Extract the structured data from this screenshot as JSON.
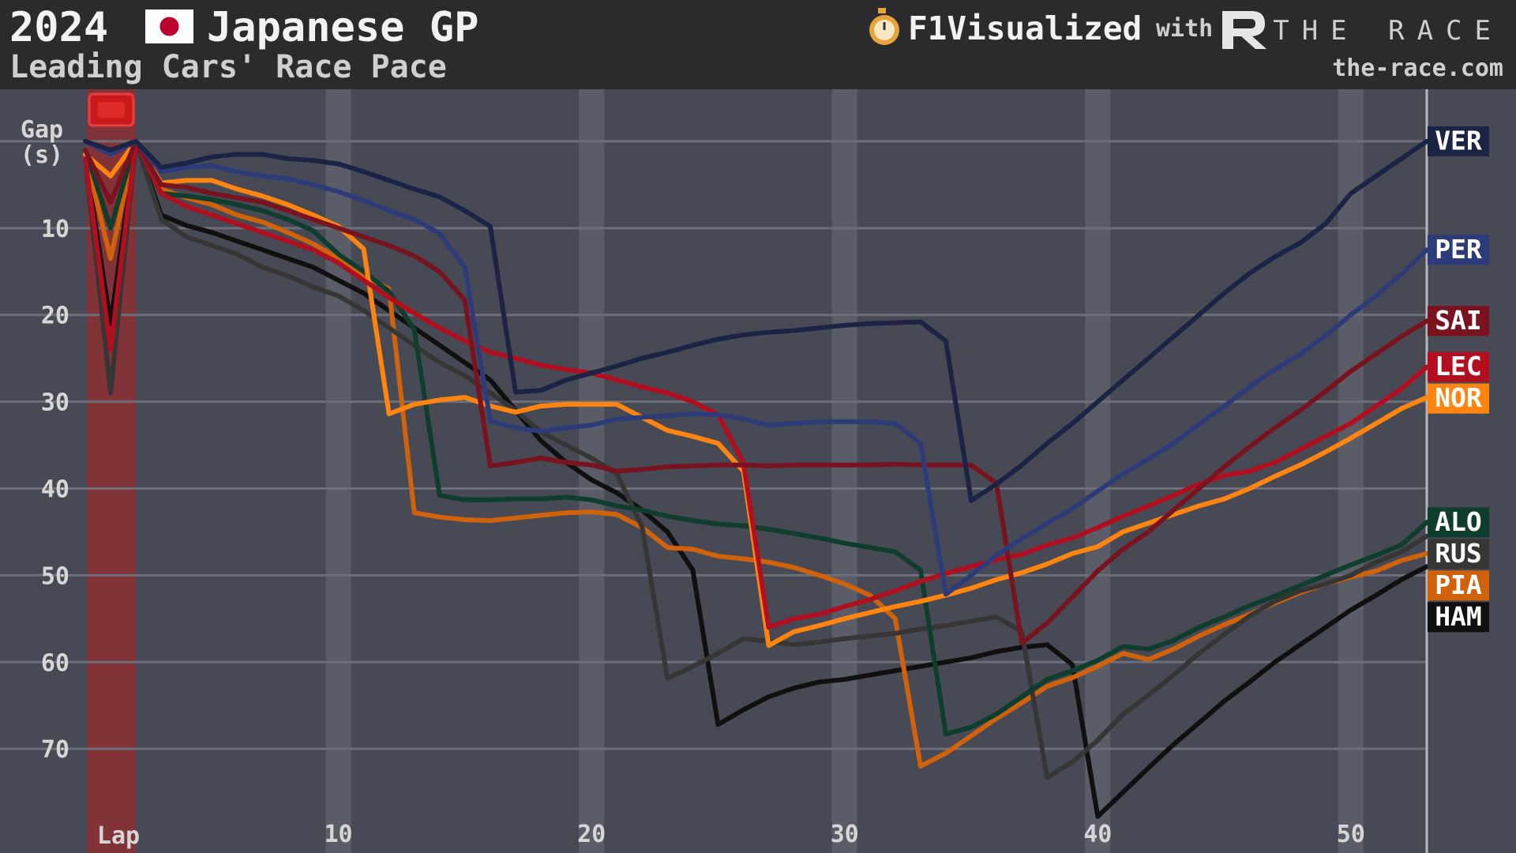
{
  "chart_data": {
    "type": "line",
    "season": "2024",
    "title": "Japanese GP",
    "subtitle": "Leading Cars' Race Pace",
    "x_label": "Lap",
    "xlim": [
      0,
      53
    ],
    "xticks": [
      10,
      20,
      30,
      40,
      50
    ],
    "ylim": [
      82,
      -6
    ],
    "yticks": [
      {
        "value": 0,
        "label": "Gap (s)"
      },
      10,
      20,
      30,
      40,
      50,
      60,
      70
    ],
    "grid": true,
    "x": [
      0,
      1,
      2,
      3,
      4,
      5,
      6,
      7,
      8,
      9,
      10,
      11,
      12,
      13,
      14,
      15,
      16,
      17,
      18,
      19,
      20,
      21,
      22,
      23,
      24,
      25,
      26,
      27,
      28,
      29,
      30,
      31,
      32,
      33,
      34,
      35,
      36,
      37,
      38,
      39,
      40,
      41,
      42,
      43,
      44,
      45,
      46,
      47,
      48,
      49,
      50,
      51,
      52,
      53
    ],
    "series": [
      {
        "name": "VER",
        "color": "#1c2445",
        "values": [
          0,
          1,
          0,
          3,
          2.5,
          1.8,
          1.5,
          1.5,
          2,
          2.2,
          2.6,
          3.5,
          4.5,
          5.5,
          6.4,
          8,
          9.8,
          28.9,
          28.7,
          27.5,
          26.7,
          25.9,
          25,
          24.3,
          23.5,
          22.8,
          22.3,
          22,
          21.8,
          21.5,
          21.2,
          21,
          20.9,
          20.8,
          23,
          41.4,
          39.5,
          37.3,
          34.8,
          32.5,
          30,
          27.5,
          25,
          22.5,
          20,
          17.5,
          15.2,
          13.3,
          11.7,
          9.5,
          6,
          4,
          2,
          0
        ]
      },
      {
        "name": "PER",
        "color": "#2d3c78",
        "values": [
          0,
          1.5,
          0,
          3.5,
          3,
          2.8,
          3.5,
          4,
          4.3,
          5,
          5.8,
          6.8,
          8,
          9,
          10.6,
          14.5,
          32.2,
          33,
          33.4,
          33,
          32.7,
          32,
          31.8,
          31.6,
          31.4,
          31.5,
          32,
          32.7,
          32.5,
          32.3,
          32.3,
          32.3,
          32.5,
          34.8,
          52.2,
          50,
          47.7,
          45.8,
          44,
          42.3,
          40.3,
          38.3,
          36.6,
          34.8,
          32.6,
          30.5,
          28.3,
          26.3,
          24.5,
          22.4,
          20,
          17.8,
          15.3,
          12.5
        ]
      },
      {
        "name": "SAI",
        "color": "#7a1320",
        "values": [
          1,
          7,
          0,
          5,
          5.3,
          6,
          6.5,
          7,
          8,
          9,
          10,
          11,
          12,
          13.2,
          15,
          18.3,
          37.4,
          37,
          36.5,
          37,
          37.3,
          38,
          37.8,
          37.5,
          37.4,
          37.3,
          37.3,
          37.4,
          37.3,
          37.3,
          37.3,
          37.3,
          37.2,
          37.3,
          37.3,
          37.3,
          39.4,
          57.8,
          55.5,
          52.5,
          49.5,
          47,
          45,
          42.5,
          40,
          37.5,
          35.2,
          33,
          31,
          28.8,
          26.5,
          24.5,
          22.5,
          20.7
        ]
      },
      {
        "name": "LEC",
        "color": "#b10f1f",
        "values": [
          2,
          24,
          0,
          6,
          7.5,
          8.5,
          9.5,
          10.5,
          11.5,
          12.5,
          14,
          16,
          18,
          19.8,
          21.5,
          23,
          24.3,
          25,
          25.8,
          26.3,
          26.7,
          27.5,
          28.3,
          29,
          30,
          31.5,
          37,
          56,
          55,
          54.5,
          53.6,
          52.8,
          51.8,
          50.7,
          49.8,
          49,
          48.2,
          47.6,
          46.5,
          45.7,
          44.5,
          43.2,
          42,
          40.8,
          39.5,
          38.5,
          38,
          37,
          35.5,
          34,
          32.5,
          30.5,
          28.5,
          26
        ]
      },
      {
        "name": "NOR",
        "color": "#ff8510",
        "values": [
          1.5,
          4,
          0,
          4.8,
          4.5,
          4.5,
          5.5,
          6.3,
          7.3,
          8.5,
          9.8,
          12.4,
          31.4,
          30.3,
          29.8,
          29.5,
          30.5,
          31.2,
          30.5,
          30.3,
          30.3,
          30.3,
          31.8,
          33.3,
          34,
          34.8,
          38,
          58.1,
          56.5,
          55.8,
          55,
          54.3,
          53.6,
          53,
          52.3,
          51.5,
          50.5,
          49.7,
          48.7,
          47.5,
          46.7,
          45,
          44,
          43,
          42,
          41.2,
          40,
          38.6,
          37.3,
          35.8,
          34.2,
          32.5,
          30.8,
          29.5
        ]
      },
      {
        "name": "ALO",
        "color": "#0f3d2e",
        "values": [
          1,
          10,
          0,
          6,
          6.3,
          6.7,
          7.3,
          8,
          9,
          10.3,
          13,
          15,
          17.3,
          21.7,
          40.8,
          41.3,
          41.3,
          41.2,
          41.2,
          41,
          41.3,
          42,
          42.5,
          43.2,
          43.7,
          44.1,
          44.3,
          44.7,
          45.2,
          45.7,
          46.3,
          46.8,
          47.3,
          49.4,
          68.3,
          67.5,
          66,
          64,
          62,
          61,
          59.8,
          58.2,
          58.5,
          57.5,
          56,
          54.8,
          53.5,
          52.4,
          51.2,
          50,
          48.8,
          47.7,
          46.5,
          43.9
        ]
      },
      {
        "name": "RUS",
        "color": "#363636",
        "values": [
          2,
          29,
          0,
          9,
          11,
          12,
          13,
          14.5,
          15.5,
          16.8,
          17.8,
          19.5,
          21.5,
          23.5,
          25.5,
          27,
          29,
          31,
          33.5,
          35,
          36.5,
          38.3,
          44.4,
          61.9,
          60.5,
          59,
          57.3,
          57.6,
          58,
          57.7,
          57.3,
          57,
          56.7,
          56.2,
          55.8,
          55.3,
          54.8,
          56.5,
          73.3,
          71.5,
          69,
          66,
          63.8,
          61.5,
          59,
          56.8,
          54.7,
          53,
          51.8,
          51,
          50,
          48.5,
          47.3,
          45.5
        ]
      },
      {
        "name": "PIA",
        "color": "#d0620c",
        "values": [
          1.5,
          13.5,
          0,
          5.5,
          6.5,
          7.3,
          8.5,
          9.3,
          10.5,
          11.8,
          13.5,
          15.5,
          17,
          42.8,
          43.3,
          43.6,
          43.7,
          43.4,
          43.1,
          42.8,
          42.7,
          43,
          44.5,
          46.8,
          47,
          47.8,
          48.1,
          48.5,
          49.1,
          50,
          51,
          52.3,
          55,
          72,
          70.5,
          68.5,
          66.5,
          64.7,
          62.8,
          61.8,
          60.5,
          59,
          59.7,
          58.5,
          57,
          55.7,
          54.5,
          53.2,
          52,
          51,
          50.2,
          49.5,
          48.3,
          47.5
        ]
      },
      {
        "name": "HAM",
        "color": "#101010",
        "values": [
          2,
          21,
          0,
          8.5,
          9.7,
          10.5,
          11.5,
          12.5,
          13.5,
          14.5,
          16,
          17.5,
          19.5,
          21.5,
          23.5,
          25.5,
          27.5,
          31,
          34.5,
          37,
          39,
          40.5,
          42.5,
          45,
          49.4,
          67.2,
          65.5,
          64,
          63,
          62.3,
          62,
          61.5,
          61,
          60.5,
          60,
          59.5,
          58.8,
          58.3,
          58,
          60.3,
          77.8,
          75,
          72.2,
          69.5,
          67,
          64.5,
          62.3,
          60,
          58,
          56,
          54,
          52.3,
          50.5,
          49
        ]
      }
    ]
  },
  "branding": {
    "name": "F1Visualized",
    "with": "with",
    "partner": "THE RACE",
    "url": "the-race.com"
  }
}
